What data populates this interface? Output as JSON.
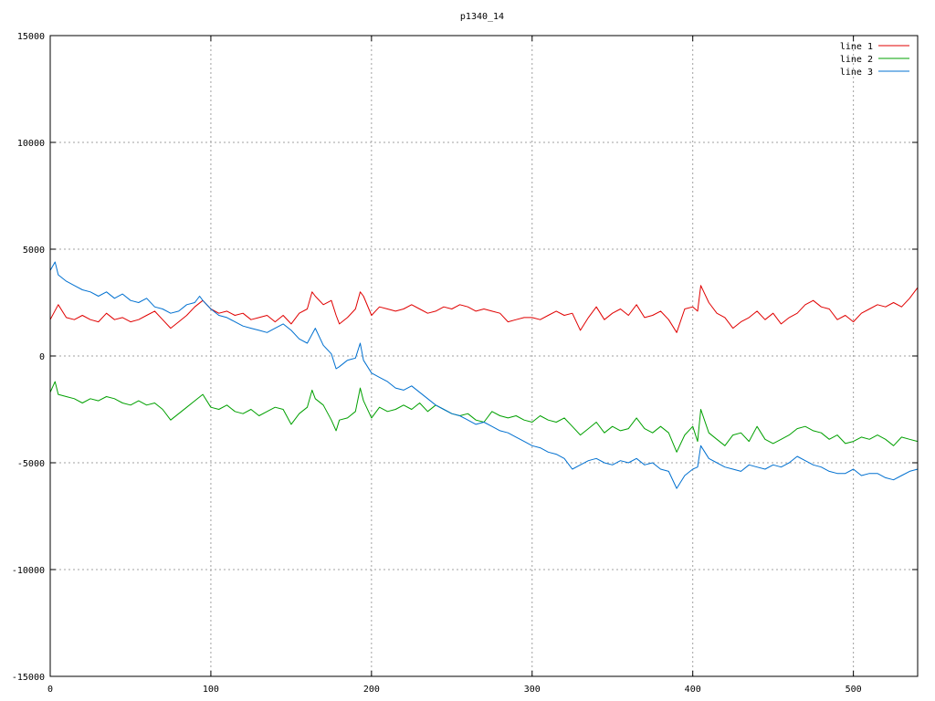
{
  "chart_data": {
    "type": "line",
    "title": "p1340_14",
    "xlabel": "",
    "ylabel": "",
    "xlim": [
      0,
      540
    ],
    "ylim": [
      -15000,
      15000
    ],
    "xticks": [
      0,
      100,
      200,
      300,
      400,
      500
    ],
    "yticks": [
      -15000,
      -10000,
      -5000,
      0,
      5000,
      10000,
      15000
    ],
    "grid": true,
    "legend_position": "top-right",
    "series": [
      {
        "name": "line 1",
        "color": "#e00000",
        "x": [
          0,
          5,
          10,
          15,
          20,
          25,
          30,
          35,
          40,
          45,
          50,
          55,
          60,
          65,
          70,
          75,
          80,
          85,
          90,
          95,
          100,
          105,
          110,
          115,
          120,
          125,
          130,
          135,
          140,
          145,
          150,
          155,
          160,
          163,
          165,
          170,
          175,
          178,
          180,
          185,
          190,
          193,
          195,
          200,
          205,
          210,
          215,
          220,
          225,
          230,
          235,
          240,
          245,
          250,
          255,
          260,
          265,
          270,
          275,
          280,
          285,
          290,
          295,
          300,
          305,
          310,
          315,
          320,
          325,
          330,
          335,
          340,
          345,
          350,
          355,
          360,
          365,
          370,
          375,
          380,
          385,
          390,
          395,
          400,
          403,
          405,
          410,
          415,
          420,
          425,
          430,
          435,
          440,
          445,
          450,
          455,
          460,
          465,
          470,
          475,
          480,
          485,
          490,
          495,
          500,
          505,
          510,
          515,
          520,
          525,
          530,
          535,
          540
        ],
        "y": [
          1700,
          2400,
          1800,
          1700,
          1900,
          1700,
          1600,
          2000,
          1700,
          1800,
          1600,
          1700,
          1900,
          2100,
          1700,
          1300,
          1600,
          1900,
          2300,
          2600,
          2200,
          2000,
          2100,
          1900,
          2000,
          1700,
          1800,
          1900,
          1600,
          1900,
          1500,
          2000,
          2200,
          3000,
          2800,
          2400,
          2600,
          1900,
          1500,
          1800,
          2200,
          3000,
          2800,
          1900,
          2300,
          2200,
          2100,
          2200,
          2400,
          2200,
          2000,
          2100,
          2300,
          2200,
          2400,
          2300,
          2100,
          2200,
          2100,
          2000,
          1600,
          1700,
          1800,
          1800,
          1700,
          1900,
          2100,
          1900,
          2000,
          1200,
          1800,
          2300,
          1700,
          2000,
          2200,
          1900,
          2400,
          1800,
          1900,
          2100,
          1700,
          1100,
          2200,
          2300,
          2100,
          3300,
          2500,
          2000,
          1800,
          1300,
          1600,
          1800,
          2100,
          1700,
          2000,
          1500,
          1800,
          2000,
          2400,
          2600,
          2300,
          2200,
          1700,
          1900,
          1600,
          2000,
          2200,
          2400,
          2300,
          2500,
          2300,
          2700,
          3200
        ]
      },
      {
        "name": "line 2",
        "color": "#00a000",
        "x": [
          0,
          3,
          5,
          10,
          15,
          20,
          25,
          30,
          35,
          40,
          45,
          50,
          55,
          60,
          65,
          70,
          75,
          80,
          85,
          90,
          95,
          100,
          105,
          110,
          115,
          120,
          125,
          130,
          135,
          140,
          145,
          150,
          155,
          160,
          163,
          165,
          170,
          175,
          178,
          180,
          185,
          190,
          193,
          195,
          200,
          205,
          210,
          215,
          220,
          225,
          230,
          235,
          240,
          245,
          250,
          255,
          260,
          265,
          270,
          275,
          280,
          285,
          290,
          295,
          300,
          305,
          310,
          315,
          320,
          325,
          330,
          335,
          340,
          345,
          350,
          355,
          360,
          365,
          370,
          375,
          380,
          385,
          390,
          395,
          400,
          403,
          405,
          410,
          415,
          420,
          425,
          430,
          435,
          440,
          445,
          450,
          455,
          460,
          465,
          470,
          475,
          480,
          485,
          490,
          495,
          500,
          505,
          510,
          515,
          520,
          525,
          530,
          535,
          540
        ],
        "y": [
          -1700,
          -1200,
          -1800,
          -1900,
          -2000,
          -2200,
          -2000,
          -2100,
          -1900,
          -2000,
          -2200,
          -2300,
          -2100,
          -2300,
          -2200,
          -2500,
          -3000,
          -2700,
          -2400,
          -2100,
          -1800,
          -2400,
          -2500,
          -2300,
          -2600,
          -2700,
          -2500,
          -2800,
          -2600,
          -2400,
          -2500,
          -3200,
          -2700,
          -2400,
          -1600,
          -2000,
          -2300,
          -3000,
          -3500,
          -3000,
          -2900,
          -2600,
          -1500,
          -2100,
          -2900,
          -2400,
          -2600,
          -2500,
          -2300,
          -2500,
          -2200,
          -2600,
          -2300,
          -2500,
          -2700,
          -2800,
          -2700,
          -3000,
          -3100,
          -2600,
          -2800,
          -2900,
          -2800,
          -3000,
          -3100,
          -2800,
          -3000,
          -3100,
          -2900,
          -3300,
          -3700,
          -3400,
          -3100,
          -3600,
          -3300,
          -3500,
          -3400,
          -2900,
          -3400,
          -3600,
          -3300,
          -3600,
          -4500,
          -3700,
          -3300,
          -4000,
          -2500,
          -3600,
          -3900,
          -4200,
          -3700,
          -3600,
          -4000,
          -3300,
          -3900,
          -4100,
          -3900,
          -3700,
          -3400,
          -3300,
          -3500,
          -3600,
          -3900,
          -3700,
          -4100,
          -4000,
          -3800,
          -3900,
          -3700,
          -3900,
          -4200,
          -3800,
          -3900,
          -4000
        ]
      },
      {
        "name": "line 3",
        "color": "#0070d0",
        "x": [
          0,
          3,
          5,
          10,
          15,
          20,
          25,
          30,
          35,
          40,
          45,
          50,
          55,
          60,
          65,
          70,
          75,
          80,
          85,
          90,
          93,
          95,
          100,
          105,
          110,
          115,
          120,
          125,
          130,
          135,
          140,
          145,
          150,
          155,
          160,
          165,
          170,
          175,
          178,
          180,
          185,
          190,
          193,
          195,
          200,
          205,
          210,
          215,
          220,
          225,
          230,
          235,
          240,
          245,
          250,
          255,
          260,
          265,
          270,
          275,
          280,
          285,
          290,
          295,
          300,
          305,
          310,
          315,
          320,
          325,
          330,
          335,
          340,
          345,
          350,
          355,
          360,
          365,
          370,
          375,
          380,
          385,
          390,
          395,
          400,
          403,
          405,
          410,
          415,
          420,
          425,
          430,
          435,
          440,
          445,
          450,
          455,
          460,
          465,
          470,
          475,
          480,
          485,
          490,
          495,
          500,
          505,
          510,
          515,
          520,
          525,
          530,
          535,
          540
        ],
        "y": [
          4000,
          4400,
          3800,
          3500,
          3300,
          3100,
          3000,
          2800,
          3000,
          2700,
          2900,
          2600,
          2500,
          2700,
          2300,
          2200,
          2000,
          2100,
          2400,
          2500,
          2800,
          2600,
          2200,
          1900,
          1800,
          1600,
          1400,
          1300,
          1200,
          1100,
          1300,
          1500,
          1200,
          800,
          600,
          1300,
          500,
          100,
          -600,
          -500,
          -200,
          -100,
          600,
          -200,
          -800,
          -1000,
          -1200,
          -1500,
          -1600,
          -1400,
          -1700,
          -2000,
          -2300,
          -2500,
          -2700,
          -2800,
          -3000,
          -3200,
          -3100,
          -3300,
          -3500,
          -3600,
          -3800,
          -4000,
          -4200,
          -4300,
          -4500,
          -4600,
          -4800,
          -5300,
          -5100,
          -4900,
          -4800,
          -5000,
          -5100,
          -4900,
          -5000,
          -4800,
          -5100,
          -5000,
          -5300,
          -5400,
          -6200,
          -5600,
          -5300,
          -5200,
          -4200,
          -4800,
          -5000,
          -5200,
          -5300,
          -5400,
          -5100,
          -5200,
          -5300,
          -5100,
          -5200,
          -5000,
          -4700,
          -4900,
          -5100,
          -5200,
          -5400,
          -5500,
          -5500,
          -5300,
          -5600,
          -5500,
          -5500,
          -5700,
          -5800,
          -5600,
          -5400,
          -5300
        ]
      }
    ]
  }
}
